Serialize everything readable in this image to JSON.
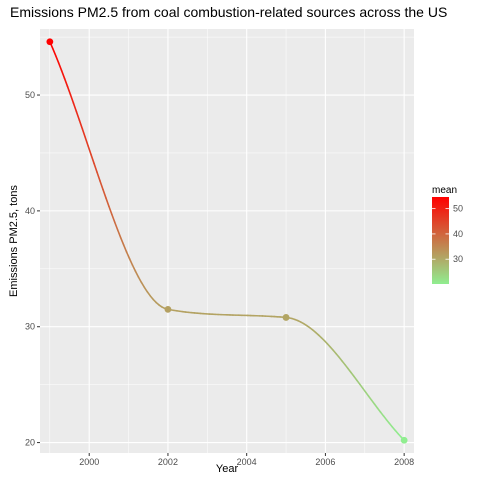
{
  "chart_data": {
    "type": "line",
    "title": "Emissions PM2.5 from coal combustion-related sources across the US",
    "xlabel": "Year",
    "ylabel": "Emissions PM2.5, tons",
    "x": [
      1999,
      2002,
      2005,
      2008
    ],
    "values": [
      54.6,
      31.5,
      30.8,
      20.2
    ],
    "xlim": [
      1998.75,
      2008.25
    ],
    "ylim": [
      19.1,
      55.7
    ],
    "xticks": [
      "2000",
      "2002",
      "2004",
      "2006",
      "2008"
    ],
    "yticks": [
      "20",
      "30",
      "40",
      "50"
    ],
    "grid": true,
    "panel_background": "#ebebeb",
    "grid_color": "#ffffff",
    "legend": {
      "title": "mean",
      "position": "right",
      "type": "colorbar",
      "min": 20.2,
      "max": 54.6,
      "breaks": [
        "30",
        "40",
        "50"
      ],
      "low_color": "#90ee90",
      "high_color": "#ff0000"
    }
  }
}
